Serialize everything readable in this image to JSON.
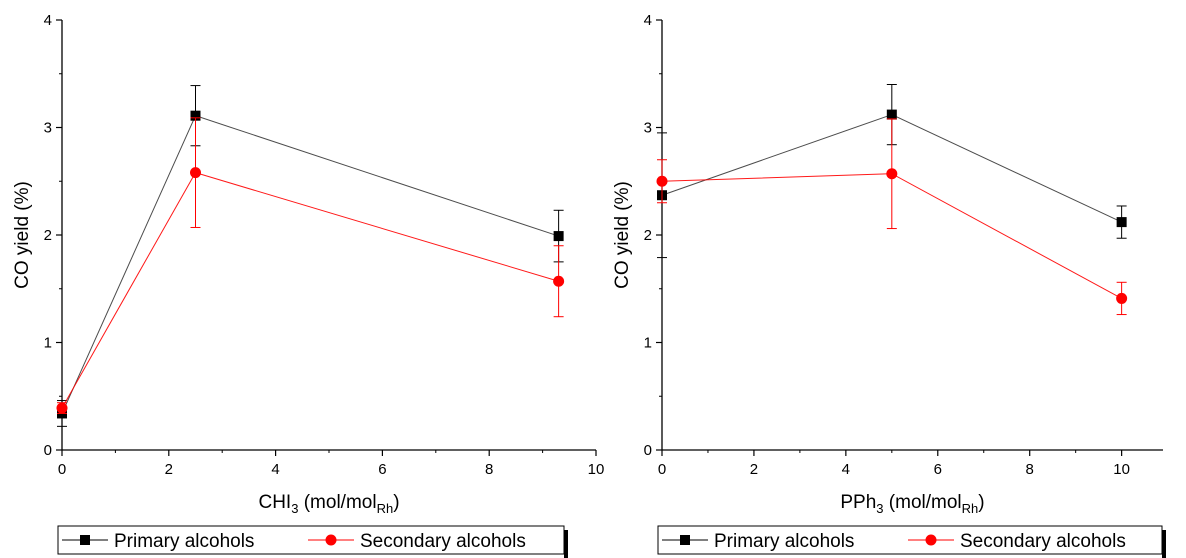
{
  "chart_data": [
    {
      "type": "line",
      "xlabel": "CHI3 (mol/molRh)",
      "xlabel_parts": {
        "main": "CHI",
        "sub1": "3",
        "mid": " (mol/mol",
        "sub2": "Rh",
        "end": ")"
      },
      "ylabel": "CO yield (%)",
      "xlim": [
        0,
        10
      ],
      "ylim": [
        0,
        4
      ],
      "xticks": [
        "0",
        "2",
        "4",
        "6",
        "8",
        "10"
      ],
      "yticks": [
        "0",
        "1",
        "2",
        "3",
        "4"
      ],
      "grid": false,
      "legend": "bottom",
      "series": [
        {
          "name": "Primary alcohols",
          "color": "#000000",
          "marker": "square",
          "x": [
            0,
            2.5,
            9.3
          ],
          "y": [
            0.34,
            3.11,
            1.99
          ],
          "err": [
            0.12,
            0.28,
            0.24
          ]
        },
        {
          "name": "Secondary alcohols",
          "color": "#ff0000",
          "marker": "circle",
          "x": [
            0,
            2.5,
            9.3
          ],
          "y": [
            0.39,
            2.58,
            1.57
          ],
          "err": [
            0.05,
            0.51,
            0.33
          ]
        }
      ]
    },
    {
      "type": "line",
      "xlabel": "PPh3 (mol/molRh)",
      "xlabel_parts": {
        "main": "PPh",
        "sub1": "3",
        "mid": " (mol/mol",
        "sub2": "Rh",
        "end": ")"
      },
      "ylabel": "CO yield (%)",
      "xlim": [
        0,
        10.9
      ],
      "ylim": [
        0,
        4
      ],
      "xticks": [
        "0",
        "2",
        "4",
        "6",
        "8",
        "10"
      ],
      "yticks": [
        "0",
        "1",
        "2",
        "3",
        "4"
      ],
      "grid": false,
      "legend": "bottom",
      "series": [
        {
          "name": "Primary alcohols",
          "color": "#000000",
          "marker": "square",
          "x": [
            0,
            5,
            10
          ],
          "y": [
            2.37,
            3.12,
            2.12
          ],
          "err": [
            0.58,
            0.28,
            0.15
          ]
        },
        {
          "name": "Secondary alcohols",
          "color": "#ff0000",
          "marker": "circle",
          "x": [
            0,
            5,
            10
          ],
          "y": [
            2.5,
            2.57,
            1.41
          ],
          "err": [
            0.2,
            0.51,
            0.15
          ]
        }
      ]
    }
  ]
}
